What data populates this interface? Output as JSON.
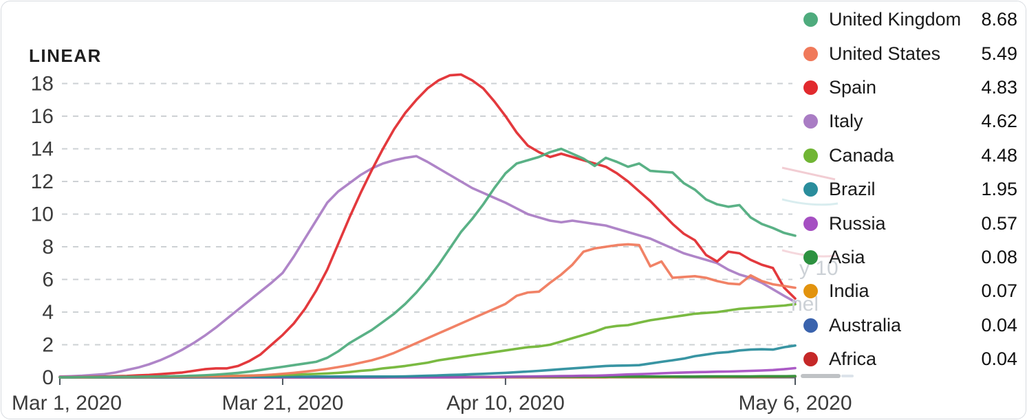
{
  "header": {
    "scale_label": "LINEAR"
  },
  "artifacts": {
    "watermark_text_1": "y 10",
    "watermark_text_2": "nel"
  },
  "chart_data": {
    "type": "line",
    "title": "",
    "x_unit": "days since Mar 1, 2020",
    "x_axis": {
      "ticks": [
        {
          "label": "Mar 1, 2020",
          "day": 0
        },
        {
          "label": "Mar 21, 2020",
          "day": 20
        },
        {
          "label": "Apr 10, 2020",
          "day": 40
        },
        {
          "label": "May 6, 2020",
          "day": 66
        }
      ],
      "day_min": 0,
      "day_max": 66
    },
    "y_axis": {
      "ticks": [
        0,
        2,
        4,
        6,
        8,
        10,
        12,
        14,
        16,
        18
      ],
      "min": 0,
      "max": 18.55,
      "grid": "dashed"
    },
    "legend_position": "right",
    "series": [
      {
        "name": "United Kingdom",
        "legend_value": "8.68",
        "color": "#4eab7d",
        "values": [
          0.01,
          0.01,
          0.02,
          0.02,
          0.03,
          0.03,
          0.04,
          0.04,
          0.05,
          0.06,
          0.07,
          0.08,
          0.1,
          0.13,
          0.17,
          0.22,
          0.28,
          0.35,
          0.45,
          0.55,
          0.65,
          0.75,
          0.85,
          0.95,
          1.2,
          1.6,
          2.1,
          2.5,
          2.9,
          3.4,
          3.9,
          4.5,
          5.2,
          6.0,
          6.9,
          7.9,
          8.9,
          9.7,
          10.6,
          11.6,
          12.5,
          13.1,
          13.3,
          13.5,
          13.8,
          14.0,
          13.7,
          13.4,
          12.95,
          13.45,
          13.2,
          12.9,
          13.1,
          12.65,
          12.6,
          12.55,
          11.9,
          11.5,
          10.9,
          10.6,
          10.45,
          10.55,
          9.8,
          9.4,
          9.15,
          8.85,
          8.68
        ]
      },
      {
        "name": "United States",
        "legend_value": "5.49",
        "color": "#f0795a",
        "values": [
          0.01,
          0.01,
          0.01,
          0.02,
          0.02,
          0.02,
          0.03,
          0.03,
          0.03,
          0.04,
          0.04,
          0.05,
          0.05,
          0.06,
          0.06,
          0.07,
          0.08,
          0.1,
          0.13,
          0.17,
          0.22,
          0.28,
          0.35,
          0.43,
          0.52,
          0.63,
          0.75,
          0.9,
          1.05,
          1.25,
          1.5,
          1.8,
          2.1,
          2.4,
          2.7,
          3.0,
          3.3,
          3.6,
          3.9,
          4.2,
          4.5,
          5.0,
          5.2,
          5.25,
          5.8,
          6.3,
          6.9,
          7.7,
          7.9,
          8.0,
          8.1,
          8.15,
          8.1,
          6.8,
          7.1,
          6.1,
          6.15,
          6.2,
          6.1,
          5.9,
          5.75,
          5.7,
          6.25,
          5.9,
          5.7,
          5.6,
          5.49
        ]
      },
      {
        "name": "Spain",
        "legend_value": "4.83",
        "color": "#e12a2e",
        "values": [
          0.02,
          0.02,
          0.03,
          0.04,
          0.05,
          0.07,
          0.09,
          0.12,
          0.15,
          0.2,
          0.25,
          0.3,
          0.4,
          0.5,
          0.55,
          0.55,
          0.7,
          1.0,
          1.4,
          2.0,
          2.6,
          3.3,
          4.2,
          5.3,
          6.6,
          8.2,
          9.8,
          11.3,
          12.7,
          14.0,
          15.2,
          16.2,
          17.0,
          17.7,
          18.2,
          18.5,
          18.55,
          18.2,
          17.7,
          16.9,
          16.0,
          15.0,
          14.2,
          13.8,
          13.5,
          13.7,
          13.5,
          13.3,
          13.1,
          12.9,
          12.5,
          12.0,
          11.4,
          10.8,
          10.1,
          9.4,
          8.8,
          8.4,
          7.5,
          7.1,
          7.7,
          7.6,
          7.2,
          6.9,
          6.7,
          5.5,
          4.83
        ]
      },
      {
        "name": "Italy",
        "legend_value": "4.62",
        "color": "#a97cc4",
        "values": [
          0.05,
          0.07,
          0.1,
          0.15,
          0.2,
          0.3,
          0.45,
          0.6,
          0.8,
          1.05,
          1.35,
          1.7,
          2.1,
          2.55,
          3.05,
          3.6,
          4.15,
          4.7,
          5.25,
          5.8,
          6.4,
          7.4,
          8.5,
          9.6,
          10.7,
          11.4,
          11.9,
          12.4,
          12.8,
          13.1,
          13.3,
          13.45,
          13.55,
          13.2,
          12.8,
          12.4,
          12.0,
          11.6,
          11.3,
          11.0,
          10.7,
          10.35,
          10.0,
          9.8,
          9.6,
          9.5,
          9.6,
          9.5,
          9.4,
          9.3,
          9.1,
          8.9,
          8.7,
          8.5,
          8.2,
          7.9,
          7.6,
          7.4,
          7.2,
          7.0,
          6.6,
          6.3,
          6.1,
          5.8,
          5.4,
          5.0,
          4.62
        ]
      },
      {
        "name": "Canada",
        "legend_value": "4.48",
        "color": "#70b534",
        "values": [
          0.01,
          0.01,
          0.01,
          0.01,
          0.02,
          0.02,
          0.02,
          0.03,
          0.03,
          0.04,
          0.04,
          0.05,
          0.06,
          0.07,
          0.08,
          0.09,
          0.1,
          0.11,
          0.12,
          0.13,
          0.15,
          0.17,
          0.19,
          0.21,
          0.24,
          0.28,
          0.33,
          0.4,
          0.45,
          0.55,
          0.62,
          0.7,
          0.8,
          0.9,
          1.05,
          1.15,
          1.25,
          1.35,
          1.45,
          1.55,
          1.65,
          1.75,
          1.85,
          1.9,
          2.0,
          2.2,
          2.4,
          2.6,
          2.8,
          3.05,
          3.15,
          3.2,
          3.35,
          3.5,
          3.6,
          3.7,
          3.8,
          3.9,
          3.95,
          4.0,
          4.1,
          4.2,
          4.25,
          4.3,
          4.35,
          4.4,
          4.48
        ]
      },
      {
        "name": "Brazil",
        "legend_value": "1.95",
        "color": "#2a8d9c",
        "values": [
          0.0,
          0.0,
          0.0,
          0.0,
          0.0,
          0.0,
          0.0,
          0.0,
          0.01,
          0.01,
          0.01,
          0.01,
          0.01,
          0.02,
          0.02,
          0.02,
          0.02,
          0.03,
          0.03,
          0.03,
          0.04,
          0.04,
          0.04,
          0.05,
          0.05,
          0.05,
          0.05,
          0.05,
          0.05,
          0.05,
          0.05,
          0.06,
          0.08,
          0.1,
          0.12,
          0.15,
          0.17,
          0.2,
          0.22,
          0.25,
          0.28,
          0.32,
          0.36,
          0.4,
          0.45,
          0.5,
          0.55,
          0.6,
          0.65,
          0.7,
          0.72,
          0.73,
          0.75,
          0.85,
          0.95,
          1.05,
          1.15,
          1.3,
          1.4,
          1.5,
          1.55,
          1.65,
          1.7,
          1.72,
          1.7,
          1.85,
          1.95
        ]
      },
      {
        "name": "Russia",
        "legend_value": "0.57",
        "color": "#a54fc2",
        "values": [
          0.0,
          0.0,
          0.0,
          0.0,
          0.0,
          0.0,
          0.0,
          0.0,
          0.0,
          0.0,
          0.0,
          0.0,
          0.0,
          0.0,
          0.0,
          0.0,
          0.0,
          0.0,
          0.0,
          0.0,
          0.0,
          0.0,
          0.0,
          0.0,
          0.0,
          0.0,
          0.0,
          0.0,
          0.0,
          0.0,
          0.0,
          0.0,
          0.0,
          0.0,
          0.0,
          0.0,
          0.01,
          0.02,
          0.02,
          0.03,
          0.03,
          0.04,
          0.05,
          0.06,
          0.07,
          0.08,
          0.09,
          0.1,
          0.1,
          0.12,
          0.15,
          0.18,
          0.2,
          0.22,
          0.25,
          0.28,
          0.3,
          0.32,
          0.33,
          0.35,
          0.36,
          0.38,
          0.4,
          0.42,
          0.45,
          0.5,
          0.57
        ]
      },
      {
        "name": "Asia",
        "legend_value": "0.08",
        "color": "#2d9140",
        "values": [
          0.02,
          0.02,
          0.02,
          0.02,
          0.02,
          0.02,
          0.02,
          0.02,
          0.02,
          0.02,
          0.02,
          0.02,
          0.02,
          0.02,
          0.02,
          0.02,
          0.02,
          0.02,
          0.02,
          0.02,
          0.03,
          0.03,
          0.03,
          0.03,
          0.03,
          0.03,
          0.03,
          0.03,
          0.03,
          0.03,
          0.03,
          0.03,
          0.03,
          0.03,
          0.03,
          0.03,
          0.03,
          0.03,
          0.03,
          0.03,
          0.04,
          0.04,
          0.04,
          0.04,
          0.04,
          0.04,
          0.04,
          0.04,
          0.04,
          0.04,
          0.05,
          0.05,
          0.05,
          0.05,
          0.05,
          0.05,
          0.05,
          0.05,
          0.06,
          0.06,
          0.06,
          0.06,
          0.06,
          0.07,
          0.07,
          0.07,
          0.08
        ]
      },
      {
        "name": "India",
        "legend_value": "0.07",
        "color": "#e2930e",
        "values": [
          0.0,
          0.0,
          0.0,
          0.0,
          0.0,
          0.0,
          0.0,
          0.0,
          0.0,
          0.0,
          0.0,
          0.0,
          0.0,
          0.0,
          0.0,
          0.0,
          0.0,
          0.0,
          0.0,
          0.0,
          0.01,
          0.01,
          0.01,
          0.01,
          0.01,
          0.01,
          0.01,
          0.01,
          0.01,
          0.01,
          0.01,
          0.01,
          0.01,
          0.01,
          0.01,
          0.01,
          0.01,
          0.01,
          0.01,
          0.01,
          0.02,
          0.02,
          0.02,
          0.02,
          0.02,
          0.02,
          0.02,
          0.02,
          0.02,
          0.02,
          0.03,
          0.03,
          0.03,
          0.03,
          0.03,
          0.03,
          0.04,
          0.04,
          0.04,
          0.04,
          0.04,
          0.05,
          0.05,
          0.05,
          0.06,
          0.06,
          0.07
        ]
      },
      {
        "name": "Australia",
        "legend_value": "0.04",
        "color": "#3a63ad",
        "values": [
          0.0,
          0.0,
          0.0,
          0.0,
          0.0,
          0.0,
          0.0,
          0.0,
          0.0,
          0.0,
          0.0,
          0.0,
          0.0,
          0.0,
          0.0,
          0.0,
          0.0,
          0.0,
          0.0,
          0.0,
          0.0,
          0.0,
          0.0,
          0.0,
          0.0,
          0.0,
          0.0,
          0.0,
          0.0,
          0.0,
          0.02,
          0.02,
          0.02,
          0.02,
          0.02,
          0.02,
          0.02,
          0.02,
          0.02,
          0.02,
          0.02,
          0.02,
          0.02,
          0.02,
          0.02,
          0.02,
          0.03,
          0.03,
          0.03,
          0.03,
          0.03,
          0.03,
          0.03,
          0.03,
          0.03,
          0.03,
          0.03,
          0.03,
          0.03,
          0.04,
          0.04,
          0.04,
          0.04,
          0.04,
          0.04,
          0.04,
          0.04
        ]
      },
      {
        "name": "Africa",
        "legend_value": "0.04",
        "color": "#c52828",
        "values": [
          0.0,
          0.0,
          0.0,
          0.0,
          0.0,
          0.0,
          0.0,
          0.0,
          0.0,
          0.0,
          0.0,
          0.0,
          0.0,
          0.0,
          0.0,
          0.0,
          0.0,
          0.0,
          0.0,
          0.0,
          0.0,
          0.0,
          0.0,
          0.0,
          0.0,
          0.0,
          0.0,
          0.0,
          0.0,
          0.0,
          0.01,
          0.01,
          0.01,
          0.01,
          0.01,
          0.01,
          0.01,
          0.01,
          0.01,
          0.01,
          0.01,
          0.01,
          0.01,
          0.01,
          0.01,
          0.01,
          0.01,
          0.01,
          0.01,
          0.01,
          0.02,
          0.02,
          0.02,
          0.02,
          0.02,
          0.02,
          0.02,
          0.02,
          0.02,
          0.02,
          0.03,
          0.03,
          0.03,
          0.03,
          0.03,
          0.04,
          0.04
        ]
      }
    ]
  }
}
